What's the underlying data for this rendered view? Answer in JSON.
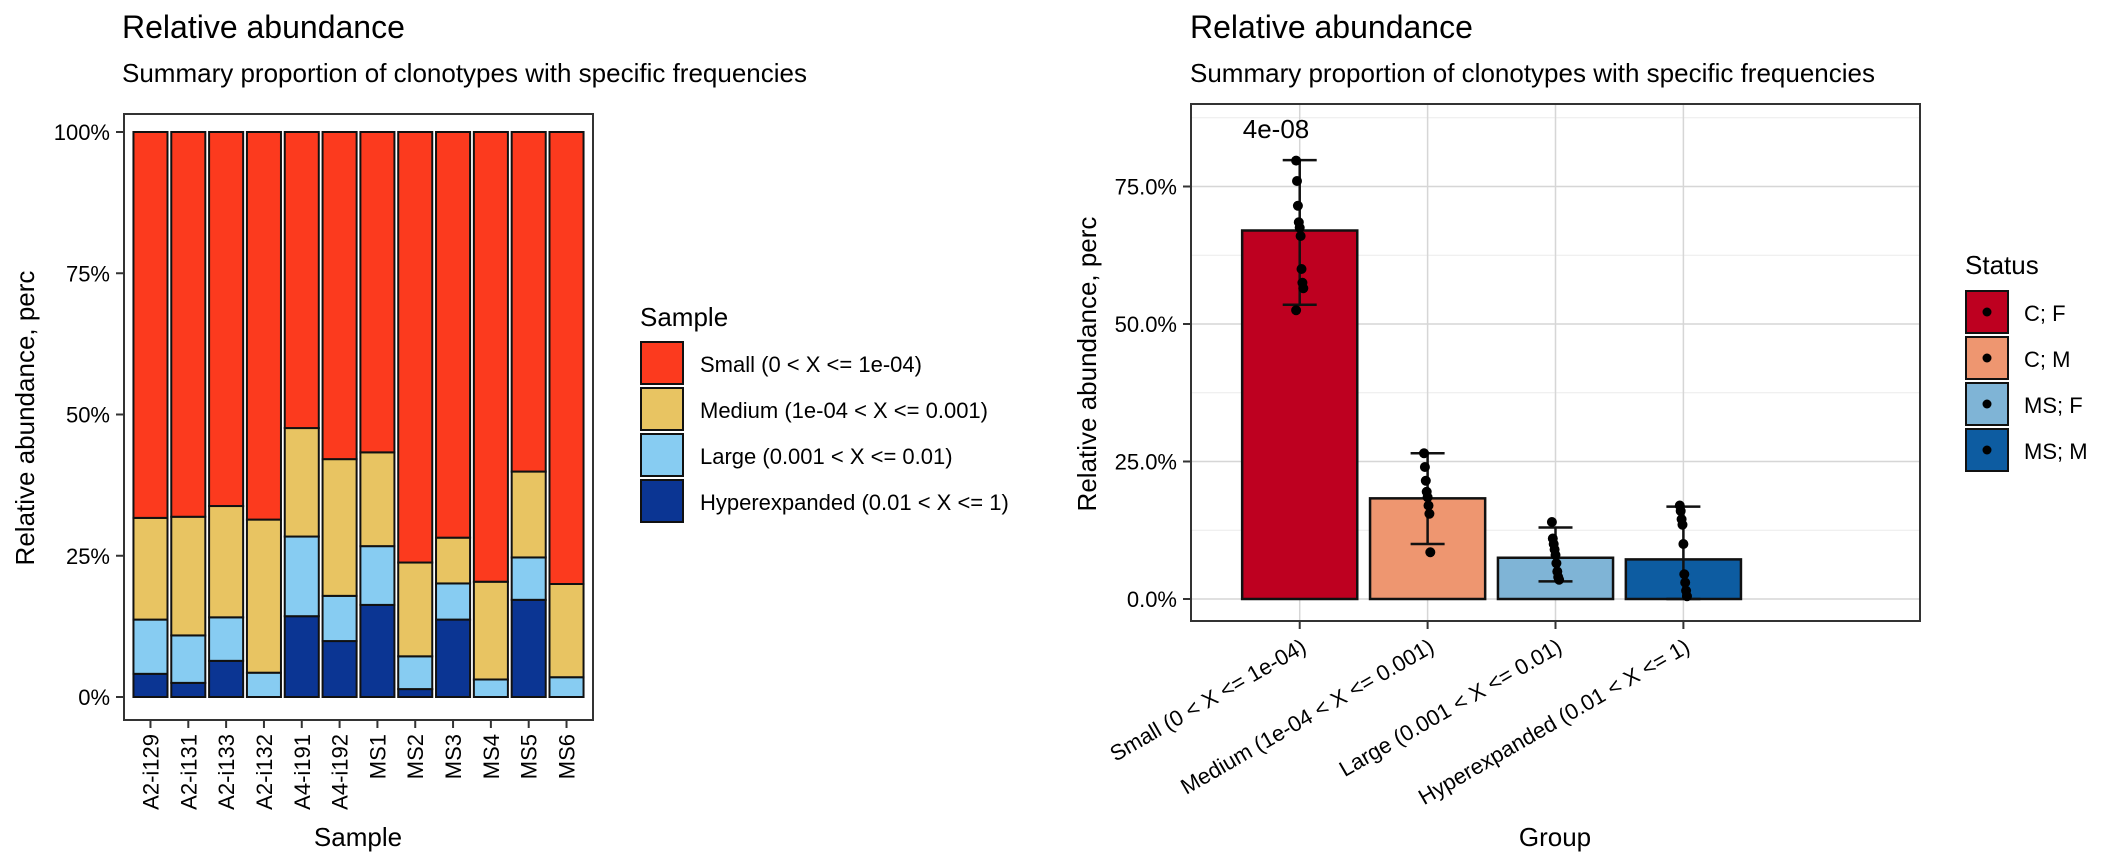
{
  "chart_data": [
    {
      "type": "bar",
      "stacked": true,
      "title": "Relative abundance",
      "subtitle": "Summary proportion of clonotypes with specific frequencies",
      "xlabel": "Sample",
      "ylabel": "Relative abundance, perc",
      "ylim": [
        0,
        1
      ],
      "yticks": [
        "0%",
        "25%",
        "50%",
        "75%",
        "100%"
      ],
      "categories": [
        "A2-i129",
        "A2-i131",
        "A2-i133",
        "A2-i132",
        "A4-i191",
        "A4-i192",
        "MS1",
        "MS2",
        "MS3",
        "MS4",
        "MS5",
        "MS6"
      ],
      "legend_title": "Sample",
      "legend_position": "right",
      "series": [
        {
          "name": "Small (0 < X <= 1e-04)",
          "color": "#FC3A1E",
          "values": [
            0.683,
            0.681,
            0.662,
            0.686,
            0.524,
            0.579,
            0.567,
            0.762,
            0.718,
            0.796,
            0.601,
            0.8
          ]
        },
        {
          "name": "Medium (1e-04 < X <= 0.001)",
          "color": "#E8C462",
          "values": [
            0.18,
            0.21,
            0.197,
            0.271,
            0.192,
            0.242,
            0.166,
            0.166,
            0.081,
            0.173,
            0.152,
            0.165
          ]
        },
        {
          "name": "Large (0.001 < X <= 0.01)",
          "color": "#87CCF2",
          "values": [
            0.096,
            0.084,
            0.077,
            0.043,
            0.141,
            0.08,
            0.104,
            0.058,
            0.064,
            0.031,
            0.075,
            0.035
          ]
        },
        {
          "name": "Hyperexpanded (0.01 < X <= 1)",
          "color": "#0B3593",
          "values": [
            0.041,
            0.025,
            0.064,
            0.0,
            0.143,
            0.099,
            0.163,
            0.014,
            0.137,
            0.0,
            0.172,
            0.0
          ]
        }
      ]
    },
    {
      "type": "bar",
      "title": "Relative abundance",
      "subtitle": "Summary proportion of clonotypes with specific frequencies",
      "xlabel": "Group",
      "ylabel": "Relative abundance, perc",
      "ylim": [
        -0.04,
        0.9
      ],
      "yticks": [
        "0.0%",
        "25.0%",
        "50.0%",
        "75.0%"
      ],
      "categories": [
        "Small (0 < X <= 1e-04)",
        "Medium (1e-04 < X <= 0.001)",
        "Large (0.001 < X <= 0.01)",
        "Hyperexpanded (0.01 < X <= 1)"
      ],
      "values": [
        0.67,
        0.183,
        0.075,
        0.072
      ],
      "bar_colors": [
        "#BE0020",
        "#EE9670",
        "#7FB4D6",
        "#0D5CA1"
      ],
      "error_bars": [
        [
          0.535,
          0.798
        ],
        [
          0.1,
          0.265
        ],
        [
          0.032,
          0.13
        ],
        [
          0.0,
          0.168
        ]
      ],
      "points": [
        [
          0.797,
          0.76,
          0.715,
          0.685,
          0.675,
          0.66,
          0.6,
          0.575,
          0.565,
          0.525
        ],
        [
          0.265,
          0.24,
          0.215,
          0.195,
          0.185,
          0.17,
          0.155,
          0.085
        ],
        [
          0.14,
          0.11,
          0.1,
          0.09,
          0.08,
          0.065,
          0.05,
          0.04,
          0.035
        ],
        [
          0.17,
          0.16,
          0.145,
          0.135,
          0.1,
          0.045,
          0.03,
          0.015,
          0.005
        ]
      ],
      "annotation": "4e-08",
      "legend_title": "Status",
      "legend_position": "right",
      "legend": [
        {
          "name": "C; F",
          "color": "#BE0020"
        },
        {
          "name": "C; M",
          "color": "#EE9670"
        },
        {
          "name": "MS; F",
          "color": "#7FB4D6"
        },
        {
          "name": "MS; M",
          "color": "#0D5CA1"
        }
      ]
    }
  ]
}
